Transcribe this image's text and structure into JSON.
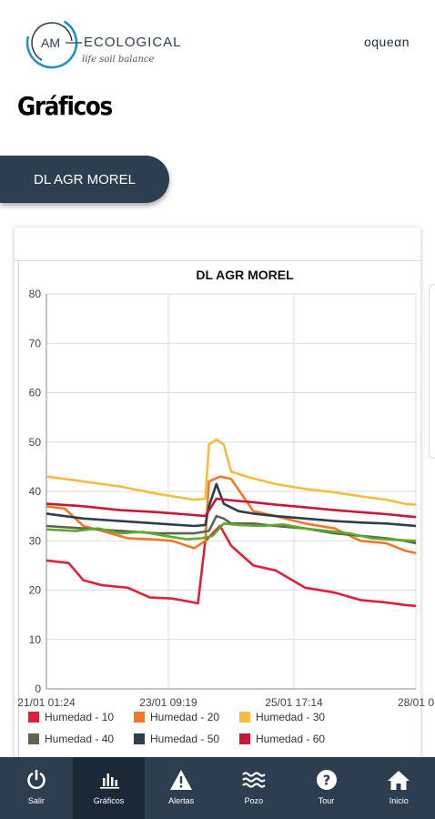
{
  "header": {
    "logo_initials": "AM",
    "logo_name": "ECOLOGICAL",
    "logo_tagline": "life soil balance",
    "partner_brand": "oqueαn"
  },
  "page": {
    "title": "Gráficos"
  },
  "station_button": {
    "label": "DL AGR MOREL"
  },
  "colors": {
    "nav_bg": "#2d3e50",
    "nav_active_bg": "#1b2836",
    "humedad_10": "#e0203a",
    "humedad_20": "#f0782a",
    "humedad_30": "#f5bd3e",
    "humedad_40": "#5e6450",
    "humedad_50": "#2f3e4a",
    "humedad_60": "#c8183a",
    "extra_green": "#5dab2a"
  },
  "chart_data": {
    "type": "line",
    "title": "DL AGR MOREL",
    "xlabel": "",
    "ylabel": "",
    "ylim": [
      0,
      80
    ],
    "yticks": [
      "0",
      "10",
      "20",
      "30",
      "40",
      "50",
      "60",
      "70",
      "80"
    ],
    "xlim": [
      0,
      100
    ],
    "xticks": [
      {
        "label": "21/01 01:24",
        "x": 0
      },
      {
        "label": "23/01 09:19",
        "x": 33
      },
      {
        "label": "25/01 17:14",
        "x": 67
      },
      {
        "label": "28/01 0",
        "x": 100
      }
    ],
    "grid": true,
    "legend_position": "bottom",
    "series": [
      {
        "name": "Humedad - 10",
        "color": "#e0203a",
        "x": [
          0,
          6,
          10,
          15,
          22,
          28,
          34,
          40,
          41,
          43,
          47,
          50,
          56,
          62,
          70,
          78,
          85,
          92,
          97,
          100
        ],
        "y": [
          26,
          25.5,
          22,
          21,
          20.5,
          18.5,
          18.3,
          17.5,
          17.3,
          30,
          33,
          29,
          25,
          24,
          20.5,
          19.5,
          18,
          17.5,
          17,
          16.8
        ]
      },
      {
        "name": "Humedad - 20",
        "color": "#f0782a",
        "x": [
          0,
          5,
          10,
          15,
          22,
          28,
          34,
          40,
          43,
          44,
          47,
          50,
          56,
          62,
          70,
          78,
          85,
          92,
          97,
          100
        ],
        "y": [
          37,
          36.5,
          33,
          32,
          30.5,
          30.3,
          30,
          28.5,
          30,
          42,
          43,
          42.5,
          36,
          35,
          33.5,
          32.5,
          30,
          29.5,
          28,
          27.5
        ]
      },
      {
        "name": "Humedad - 30",
        "color": "#f5bd3e",
        "x": [
          0,
          10,
          20,
          30,
          40,
          43,
          44,
          46,
          48,
          50,
          55,
          62,
          70,
          78,
          85,
          92,
          97,
          100
        ],
        "y": [
          43,
          42,
          41,
          39.5,
          38.3,
          38.5,
          49.5,
          50.5,
          49.5,
          44,
          42.8,
          41.5,
          40.5,
          39.8,
          39,
          38.3,
          37.5,
          37.3
        ]
      },
      {
        "name": "Humedad - 40",
        "color": "#5e6450",
        "x": [
          0,
          10,
          20,
          30,
          40,
          44,
          46,
          48,
          50,
          56,
          62,
          70,
          78,
          85,
          92,
          97,
          100
        ],
        "y": [
          33,
          32.5,
          32,
          31.5,
          31.5,
          32,
          35,
          34.5,
          33.5,
          33.5,
          33,
          32.5,
          31.5,
          31,
          30.5,
          30,
          29.5
        ]
      },
      {
        "name": "Humedad - 50",
        "color": "#2f3e4a",
        "x": [
          0,
          10,
          20,
          30,
          40,
          43,
          44,
          46,
          48,
          52,
          56,
          62,
          70,
          78,
          85,
          92,
          97,
          100
        ],
        "y": [
          35.5,
          34.5,
          34,
          33.5,
          33,
          33.2,
          37,
          41.5,
          37.5,
          36,
          35.5,
          35,
          34.5,
          34,
          33.7,
          33.5,
          33.2,
          33
        ]
      },
      {
        "name": "Humedad - 60",
        "color": "#c8183a",
        "x": [
          0,
          10,
          20,
          30,
          40,
          43,
          46,
          50,
          56,
          62,
          70,
          78,
          85,
          92,
          97,
          100
        ],
        "y": [
          37.5,
          37,
          36.2,
          35.8,
          35.2,
          35,
          38.5,
          38.2,
          37.8,
          37.3,
          36.8,
          36.2,
          35.8,
          35.4,
          35,
          34.8
        ]
      },
      {
        "name": "",
        "color": "#5dab2a",
        "x": [
          0,
          8,
          14,
          20,
          26,
          32,
          38,
          42,
          45,
          48,
          52,
          58,
          64,
          70,
          76,
          82,
          88,
          94,
          100
        ],
        "y": [
          32.3,
          32,
          32.5,
          31.5,
          31.8,
          31,
          30.3,
          30.5,
          31,
          33.5,
          33.2,
          33,
          33.3,
          32.5,
          32,
          31.5,
          30.5,
          30.2,
          30
        ]
      }
    ]
  },
  "legend": [
    {
      "label": "Humedad - 10",
      "color": "#e0203a"
    },
    {
      "label": "Humedad - 20",
      "color": "#f0782a"
    },
    {
      "label": "Humedad - 30",
      "color": "#f5bd3e"
    },
    {
      "label": "Humedad - 40",
      "color": "#5e6450"
    },
    {
      "label": "Humedad - 50",
      "color": "#2f3e4a"
    },
    {
      "label": "Humedad - 60",
      "color": "#c8183a"
    }
  ],
  "bottom_nav": [
    {
      "label": "Salir",
      "icon": "power-icon"
    },
    {
      "label": "Gráficos",
      "icon": "bar-chart-icon",
      "active": true
    },
    {
      "label": "Alertas",
      "icon": "warning-icon"
    },
    {
      "label": "Pozo",
      "icon": "water-waves-icon"
    },
    {
      "label": "Tour",
      "icon": "help-icon"
    },
    {
      "label": "Inicio",
      "icon": "home-icon"
    }
  ]
}
